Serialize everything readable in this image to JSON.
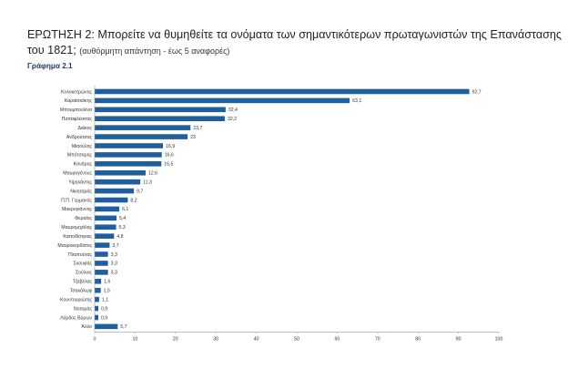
{
  "header": {
    "question": "ΕΡΩΤΗΣΗ 2: Μπορείτε να θυμηθείτε τα ονόματα των σημαντικότερων πρωταγωνιστών της Επανάστασης του 1821;",
    "note": "(αυθόρμητη απάντηση - έως 5 αναφορές)",
    "figure_label": "Γράφημα 2.1"
  },
  "chart_data": {
    "type": "bar",
    "orientation": "horizontal",
    "title": "",
    "xlabel": "",
    "ylabel": "",
    "xlim": [
      0,
      100
    ],
    "x_ticks": [
      0,
      10,
      20,
      30,
      40,
      50,
      60,
      70,
      80,
      90,
      100
    ],
    "grid": false,
    "legend": "none",
    "bar_color": "#1f5f9e",
    "categories": [
      "Κολοκοτρώνης",
      "Καραϊσκάκης",
      "Μπουμπουλίνα",
      "Παπαφλέσσας",
      "Διάκος",
      "Ανδρούτσος",
      "Μιαούλης",
      "Μπότσαρης",
      "Κανάρης",
      "Μαυρογένους",
      "Υψηλάντης",
      "Νικηταράς",
      "Π.Π. Γερμανός",
      "Μακρυγιάννης",
      "Φεραίος",
      "Μαυρομιχάλης",
      "Καποδίστριας",
      "Μαυροκορδάτος",
      "Πλαπούτας",
      "Σκουφάς",
      "Σούλιος",
      "Τζαβέλας",
      "Τσακάλωφ",
      "Κουντουριώτης",
      "Νοταράς",
      "Λόρδος Βύρων",
      "Άλλο"
    ],
    "values": [
      92.7,
      63.1,
      32.4,
      32.2,
      23.7,
      23,
      16.9,
      16.6,
      16.5,
      12.6,
      11.3,
      9.7,
      8.2,
      6.1,
      5.4,
      5.3,
      4.8,
      3.7,
      3.3,
      3.3,
      3.3,
      1.6,
      1.5,
      1.1,
      0.9,
      0.9,
      5.7
    ],
    "value_labels": [
      "92,7",
      "63,1",
      "32,4",
      "32,2",
      "23,7",
      "23",
      "16,9",
      "16,6",
      "16,5",
      "12,6",
      "11,3",
      "9,7",
      "8,2",
      "6,1",
      "5,4",
      "5,3",
      "4,8",
      "3,7",
      "3,3",
      "3,3",
      "3,3",
      "1,6",
      "1,5",
      "1,1",
      "0,9",
      "0,9",
      "5,7"
    ]
  }
}
